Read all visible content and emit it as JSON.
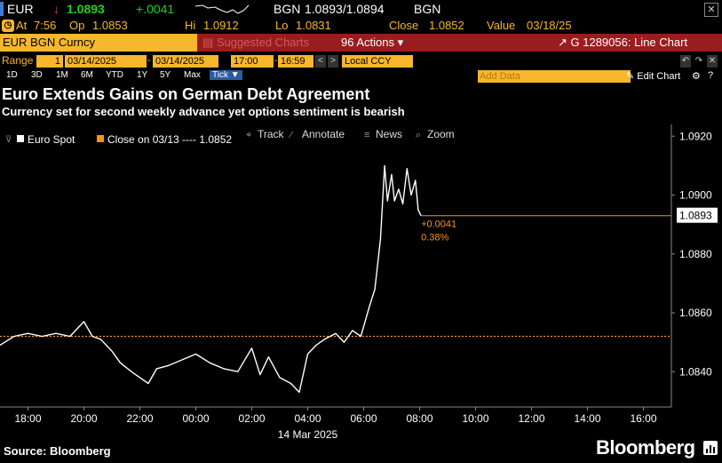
{
  "quote": {
    "ticker": "EUR",
    "arrow": "↓",
    "last": "1.0893",
    "change": "+.0041",
    "source": "BGN",
    "bid_ask": "1.0893/1.0894",
    "source2": "BGN",
    "time_label": "At",
    "time": "7:56",
    "op_label": "Op",
    "open": "1.0853",
    "hi_label": "Hi",
    "high": "1.0912",
    "lo_label": "Lo",
    "low": "1.0831",
    "close_label": "Close",
    "close": "1.0852",
    "value_label": "Value",
    "value_date": "03/18/25",
    "colors": {
      "last": "#1fd11f",
      "arrow": "#e03b3b",
      "change": "#1fd11f"
    }
  },
  "toolbar": {
    "security": "EUR BGN Curncy",
    "suggested": "Suggested Charts",
    "actions_num": "96",
    "actions": "Actions ▾",
    "chart_id": "G 1289056: Line Chart"
  },
  "range": {
    "label": "Range",
    "num": "1",
    "start_date": "03/14/2025",
    "end_date": "03/14/2025",
    "start_time": "17:00",
    "end_time": "16:59",
    "ccy": "Local CCY"
  },
  "periods": [
    "1D",
    "3D",
    "1M",
    "6M",
    "YTD",
    "1Y",
    "5Y",
    "Max"
  ],
  "period_active": "Tick ▼",
  "add_data": "Add Data",
  "edit_chart": "Edit Chart",
  "headline": "Euro Extends Gains on German Debt Agreement",
  "subheadline": "Currency set for second weekly advance yet options sentiment is bearish",
  "chart_data": {
    "type": "line",
    "legend": [
      {
        "name": "Euro Spot",
        "color": "#ffffff"
      },
      {
        "name": "Close on 03/13 ---- 1.0852",
        "color": "#f7941d"
      }
    ],
    "tools": [
      "Track",
      "Annotate",
      "News",
      "Zoom"
    ],
    "x_tick_labels": [
      "18:00",
      "20:00",
      "22:00",
      "00:00",
      "02:00",
      "04:00",
      "06:00",
      "08:00",
      "10:00",
      "12:00",
      "14:00",
      "16:00"
    ],
    "x_date_label": "14 Mar 2025",
    "y_tick_labels": [
      "1.0920",
      "1.0900",
      "1.0880",
      "1.0860",
      "1.0840"
    ],
    "ylim": [
      1.0828,
      1.0924
    ],
    "reference_close": 1.0852,
    "last_value_label": "1.0893",
    "change_annotation": "+0.0041",
    "change_pct_annotation": "0.38%",
    "x_hours": [
      17.0,
      17.5,
      18.0,
      18.5,
      19.0,
      19.5,
      20.0,
      20.3,
      20.6,
      21.0,
      21.3,
      21.7,
      22.0,
      22.3,
      22.6,
      23.0,
      23.5,
      24.0,
      24.5,
      25.0,
      25.5,
      26.0,
      26.3,
      26.6,
      27.0,
      27.4,
      27.7,
      28.0,
      28.3,
      28.6,
      29.0,
      29.3,
      29.6,
      29.9,
      30.2,
      30.4,
      30.6,
      30.75,
      30.85,
      31.0,
      31.1,
      31.25,
      31.4,
      31.55,
      31.7,
      31.85,
      31.95,
      32.05
    ],
    "series": [
      {
        "name": "Euro Spot",
        "values": [
          1.0849,
          1.0852,
          1.0853,
          1.0852,
          1.0853,
          1.0852,
          1.0857,
          1.0852,
          1.0851,
          1.0847,
          1.0843,
          1.084,
          1.0838,
          1.0836,
          1.0841,
          1.0842,
          1.0844,
          1.0846,
          1.0843,
          1.0841,
          1.084,
          1.0848,
          1.0839,
          1.0845,
          1.0838,
          1.0836,
          1.0833,
          1.0846,
          1.0849,
          1.0851,
          1.0853,
          1.085,
          1.0854,
          1.0852,
          1.0862,
          1.0868,
          1.0885,
          1.091,
          1.0898,
          1.0907,
          1.0898,
          1.0902,
          1.0897,
          1.0909,
          1.09,
          1.0905,
          1.0895,
          1.0893
        ]
      },
      {
        "name": "Close on 03/13",
        "values": [
          1.0852
        ]
      }
    ],
    "grid": false
  },
  "footer": {
    "source": "Source: Bloomberg",
    "brand": "Bloomberg"
  }
}
